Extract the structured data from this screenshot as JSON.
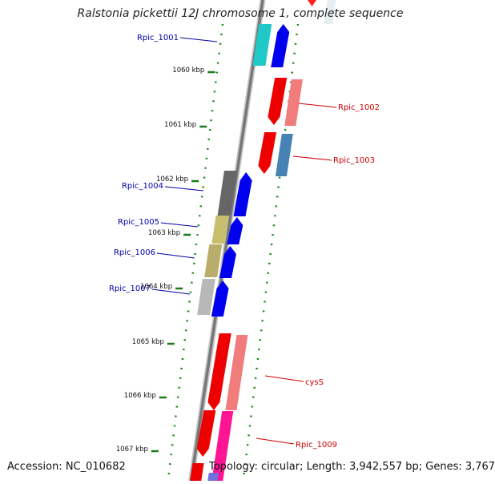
{
  "title": "Ralstonia pickettii 12J chromosome 1, complete sequence",
  "footer": {
    "accession": "Accession: NC_010682",
    "topology": "Topology: circular; Length: 3,942,557 bp; Genes: 3,767"
  },
  "ticks": [
    "1060 kbp",
    "1061 kbp",
    "1062 kbp",
    "1063 kbp",
    "1064 kbp",
    "1065 kbp",
    "1066 kbp",
    "1067 kbp"
  ],
  "genes": [
    {
      "name": "Rpic_1001",
      "color": "#0000aa"
    },
    {
      "name": "Rpic_1002",
      "color": "#cc0000"
    },
    {
      "name": "Rpic_1003",
      "color": "#cc0000"
    },
    {
      "name": "Rpic_1004",
      "color": "#0000aa"
    },
    {
      "name": "Rpic_1005",
      "color": "#0000aa"
    },
    {
      "name": "Rpic_1006",
      "color": "#0000aa"
    },
    {
      "name": "Rpic_1007",
      "color": "#0000aa"
    },
    {
      "name": "cysS",
      "color": "#cc0000"
    },
    {
      "name": "Rpic_1009",
      "color": "#cc0000"
    }
  ]
}
